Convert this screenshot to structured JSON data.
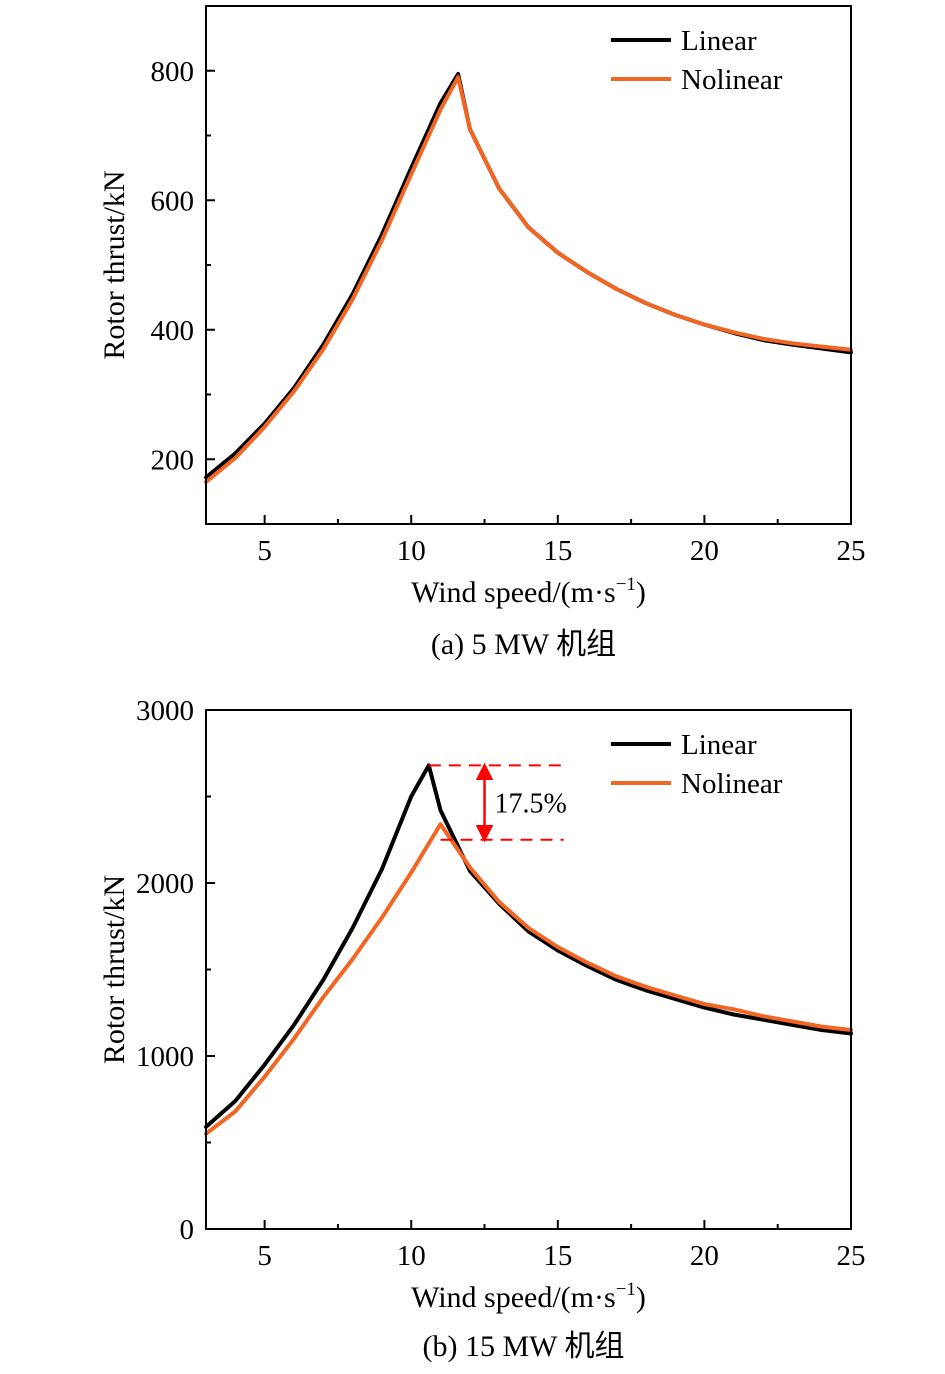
{
  "chart_data": [
    {
      "type": "line",
      "caption": "(a) 5 MW 机组",
      "xlabel": "Wind speed/(m·s",
      "xlabel_sup": "−1",
      "xlabel_end": ")",
      "ylabel": "Rotor thrust/kN",
      "xlim": [
        3,
        25
      ],
      "ylim": [
        100,
        900
      ],
      "xticks": [
        5,
        10,
        15,
        20,
        25
      ],
      "yticks": [
        200,
        400,
        600,
        800
      ],
      "legend_position": "top-right",
      "series": [
        {
          "name": "Linear",
          "color": "#000000",
          "x": [
            3,
            4,
            5,
            6,
            7,
            8,
            9,
            10,
            11,
            11.6,
            12,
            13,
            14,
            15,
            16,
            17,
            18,
            19,
            20,
            21,
            22,
            23,
            24,
            25
          ],
          "y": [
            172,
            209,
            255,
            310,
            377,
            455,
            547,
            650,
            750,
            795,
            710,
            618,
            558,
            519,
            489,
            463,
            441,
            423,
            408,
            395,
            384,
            377,
            371,
            365
          ]
        },
        {
          "name": "Nolinear",
          "color": "#f26522",
          "x": [
            3,
            4,
            5,
            6,
            7,
            8,
            9,
            10,
            11,
            11.6,
            12,
            13,
            14,
            15,
            16,
            17,
            18,
            19,
            20,
            21,
            22,
            23,
            24,
            25
          ],
          "y": [
            165,
            202,
            250,
            305,
            370,
            447,
            538,
            640,
            740,
            790,
            710,
            618,
            558,
            519,
            489,
            463,
            441,
            423,
            408,
            396,
            386,
            379,
            374,
            369
          ]
        }
      ]
    },
    {
      "type": "line",
      "caption": "(b) 15 MW 机组",
      "xlabel": "Wind speed/(m·s",
      "xlabel_sup": "−1",
      "xlabel_end": ")",
      "ylabel": "Rotor thrust/kN",
      "xlim": [
        3,
        25
      ],
      "ylim": [
        0,
        3000
      ],
      "xticks": [
        5,
        10,
        15,
        20,
        25
      ],
      "yticks": [
        0,
        1000,
        2000,
        3000
      ],
      "legend_position": "top-right",
      "annotation": {
        "text": "17.5%",
        "upper": 2680,
        "lower": 2250,
        "x_from": 10.6,
        "x_to": 15.2,
        "arrow_x": 12.5,
        "color": "#ff0000"
      },
      "series": [
        {
          "name": "Linear",
          "color": "#000000",
          "x": [
            3,
            4,
            5,
            6,
            7,
            8,
            9,
            10,
            10.6,
            11,
            12,
            13,
            14,
            15,
            16,
            17,
            18,
            19,
            20,
            21,
            22,
            23,
            24,
            25
          ],
          "y": [
            590,
            740,
            950,
            1180,
            1440,
            1740,
            2080,
            2500,
            2680,
            2420,
            2070,
            1880,
            1720,
            1610,
            1520,
            1440,
            1380,
            1330,
            1280,
            1240,
            1210,
            1180,
            1150,
            1130
          ]
        },
        {
          "name": "Nolinear",
          "color": "#f26522",
          "x": [
            3,
            4,
            5,
            6,
            7,
            8,
            9,
            10,
            11,
            12,
            13,
            14,
            15,
            16,
            17,
            18,
            19,
            20,
            21,
            22,
            23,
            24,
            25
          ],
          "y": [
            550,
            680,
            880,
            1100,
            1340,
            1560,
            1800,
            2060,
            2340,
            2090,
            1890,
            1740,
            1630,
            1540,
            1460,
            1400,
            1350,
            1300,
            1270,
            1230,
            1200,
            1170,
            1150
          ]
        }
      ]
    }
  ]
}
